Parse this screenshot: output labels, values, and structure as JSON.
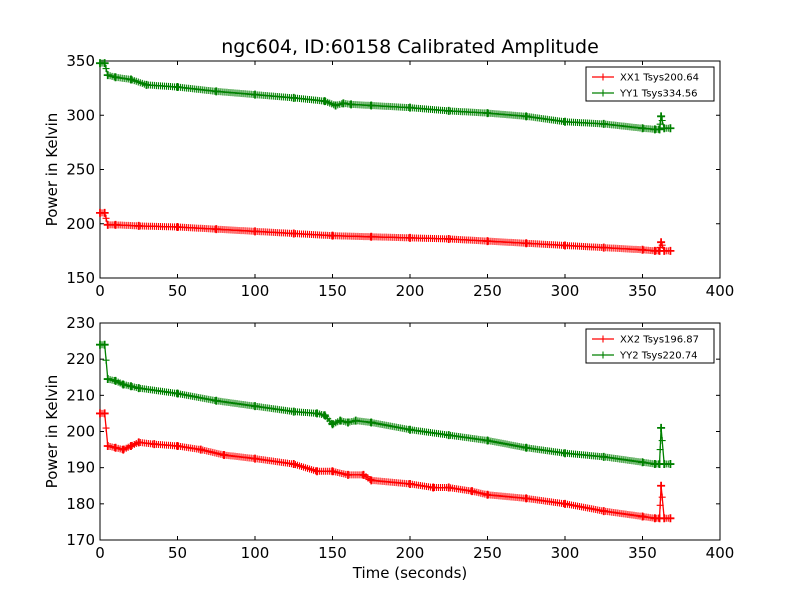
{
  "figure": {
    "title": "ngc604, ID:60158 Calibrated Amplitude",
    "xlabel": "Time (seconds)",
    "ylabel": "Power in Kelvin"
  },
  "chart_data": [
    {
      "type": "line",
      "title": "ngc604, ID:60158 Calibrated Amplitude",
      "xlabel": "",
      "ylabel": "Power in Kelvin",
      "xlim": [
        0,
        400
      ],
      "ylim": [
        150,
        350
      ],
      "xticks": [
        0,
        50,
        100,
        150,
        200,
        250,
        300,
        350,
        400
      ],
      "yticks": [
        150,
        200,
        250,
        300,
        350
      ],
      "grid": false,
      "legend_position": "top-right",
      "marker": "plus",
      "series": [
        {
          "name": "XX1 Tsys200.64",
          "color": "#ff0000",
          "x": [
            0,
            3,
            5,
            10,
            25,
            50,
            75,
            100,
            125,
            150,
            175,
            200,
            225,
            250,
            275,
            300,
            325,
            350,
            358,
            361,
            362,
            364,
            368
          ],
          "y": [
            210,
            210,
            199,
            199,
            198,
            197,
            195,
            193,
            191,
            189,
            188,
            187,
            186,
            184,
            182,
            180,
            178,
            176,
            175,
            175,
            183,
            175,
            175
          ]
        },
        {
          "name": "YY1 Tsys334.56",
          "color": "#008000",
          "x": [
            0,
            3,
            5,
            10,
            20,
            30,
            50,
            75,
            100,
            125,
            145,
            152,
            157,
            162,
            175,
            200,
            225,
            250,
            275,
            300,
            325,
            350,
            358,
            361,
            362,
            364,
            368
          ],
          "y": [
            348,
            348,
            337,
            335,
            333,
            328,
            326,
            322,
            319,
            316,
            313,
            309,
            311,
            310,
            309,
            307,
            304,
            302,
            299,
            294,
            292,
            288,
            287,
            287,
            299,
            288,
            288
          ]
        }
      ]
    },
    {
      "type": "line",
      "title": "",
      "xlabel": "Time (seconds)",
      "ylabel": "Power in Kelvin",
      "xlim": [
        0,
        400
      ],
      "ylim": [
        170,
        230
      ],
      "xticks": [
        0,
        50,
        100,
        150,
        200,
        250,
        300,
        350,
        400
      ],
      "yticks": [
        170,
        180,
        190,
        200,
        210,
        220,
        230
      ],
      "grid": false,
      "legend_position": "top-right",
      "marker": "plus",
      "series": [
        {
          "name": "XX2 Tsys196.87",
          "color": "#ff0000",
          "x": [
            0,
            3,
            5,
            10,
            15,
            20,
            25,
            35,
            50,
            65,
            80,
            100,
            125,
            140,
            150,
            160,
            170,
            175,
            200,
            215,
            225,
            240,
            250,
            275,
            300,
            325,
            350,
            358,
            361,
            362,
            364,
            368
          ],
          "y": [
            205,
            205,
            196,
            195.5,
            195,
            196,
            197,
            196.5,
            196,
            195,
            193.5,
            192.5,
            191,
            189,
            189,
            188,
            188,
            186.5,
            185.5,
            184.5,
            184.5,
            183.5,
            182.5,
            181.5,
            180,
            178,
            176.5,
            176,
            176,
            185,
            176,
            176
          ]
        },
        {
          "name": "YY2 Tsys220.74",
          "color": "#008000",
          "x": [
            0,
            3,
            5,
            10,
            15,
            20,
            25,
            50,
            75,
            100,
            125,
            140,
            145,
            150,
            155,
            160,
            165,
            175,
            200,
            225,
            250,
            275,
            300,
            325,
            350,
            358,
            361,
            362,
            364,
            368
          ],
          "y": [
            224,
            224,
            214.5,
            214,
            213,
            212.5,
            212,
            210.5,
            208.5,
            207,
            205.5,
            205,
            204.5,
            202,
            203,
            202.5,
            203,
            202.5,
            200.5,
            199,
            197.5,
            195.5,
            194,
            193,
            191.5,
            191,
            191,
            201,
            191,
            191
          ]
        }
      ]
    }
  ]
}
